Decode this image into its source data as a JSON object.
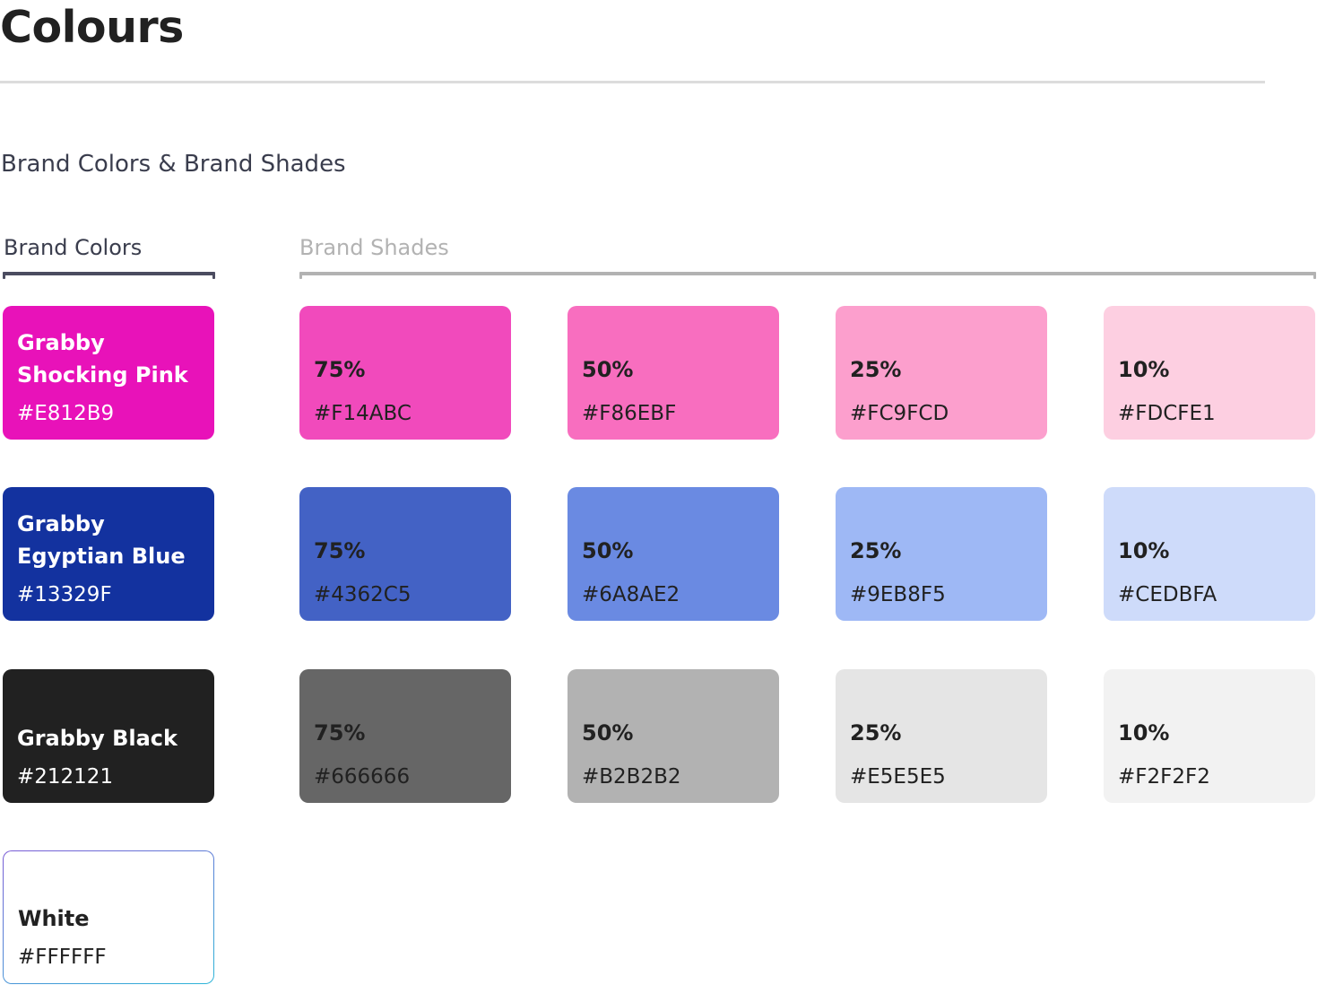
{
  "page": {
    "title": "Colours",
    "section_heading": "Brand Colors & Brand Shades",
    "brand_colors_label": "Brand Colors",
    "brand_shades_label": "Brand Shades"
  },
  "brand_colors": [
    {
      "name": "Grabby\nShocking Pink",
      "hex": "#E812B9",
      "color": "#E812B9",
      "text_color": "#FFFFFF"
    },
    {
      "name": "Grabby\nEgyptian Blue",
      "hex": "#13329F",
      "color": "#13329F",
      "text_color": "#FFFFFF"
    },
    {
      "name": "Grabby Black",
      "hex": "#212121",
      "color": "#212121",
      "text_color": "#FFFFFF"
    },
    {
      "name": "White",
      "hex": "#FFFFFF",
      "color": "#FFFFFF",
      "text_color": "#212121"
    }
  ],
  "brand_shades": [
    [
      {
        "percent": "75%",
        "hex": "#F14ABC",
        "color": "#F14ABC"
      },
      {
        "percent": "50%",
        "hex": "#F86EBF",
        "color": "#F86EBF"
      },
      {
        "percent": "25%",
        "hex": "#FC9FCD",
        "color": "#FC9FCD"
      },
      {
        "percent": "10%",
        "hex": "#FDCFE1",
        "color": "#FDCFE1"
      }
    ],
    [
      {
        "percent": "75%",
        "hex": "#4362C5",
        "color": "#4362C5"
      },
      {
        "percent": "50%",
        "hex": "#6A8AE2",
        "color": "#6A8AE2"
      },
      {
        "percent": "25%",
        "hex": "#9EB8F5",
        "color": "#9EB8F5"
      },
      {
        "percent": "10%",
        "hex": "#CEDBFA",
        "color": "#CEDBFA"
      }
    ],
    [
      {
        "percent": "75%",
        "hex": "#666666",
        "color": "#666666"
      },
      {
        "percent": "50%",
        "hex": "#B2B2B2",
        "color": "#B2B2B2"
      },
      {
        "percent": "25%",
        "hex": "#E5E5E5",
        "color": "#E5E5E5"
      },
      {
        "percent": "10%",
        "hex": "#F2F2F2",
        "color": "#F2F2F2"
      }
    ]
  ]
}
